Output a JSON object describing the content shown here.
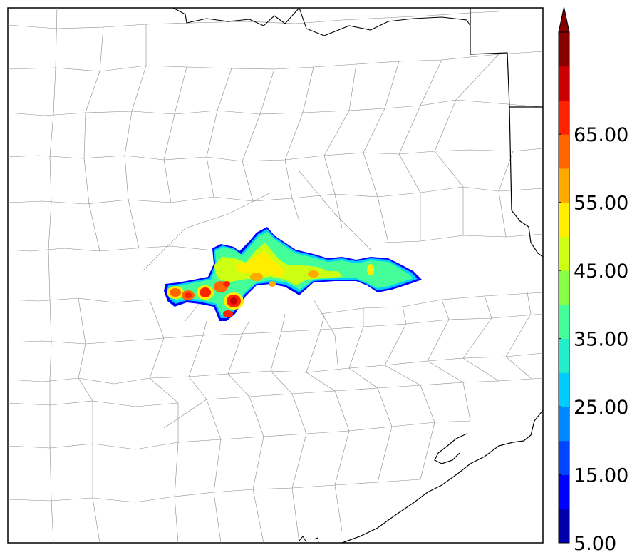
{
  "colorbar": {
    "tick_labels": [
      "5.00",
      "15.00",
      "25.00",
      "35.00",
      "45.00",
      "55.00",
      "65.00"
    ],
    "colors": [
      "#0000aa",
      "#0000ff",
      "#0044ff",
      "#0088ff",
      "#00ccff",
      "#22eecc",
      "#44ff99",
      "#88ff44",
      "#ccff11",
      "#ffee00",
      "#ffaa00",
      "#ff6600",
      "#ff2200",
      "#cc0000",
      "#880000"
    ],
    "extend": "max"
  },
  "map": {
    "features": [
      "county-boundaries",
      "state-boundary",
      "coastline"
    ],
    "field_palette": [
      "#0000ff",
      "#00ccff",
      "#44ff99",
      "#ccff11",
      "#ffee00",
      "#ff6600",
      "#ff2200",
      "#cc0000"
    ]
  }
}
